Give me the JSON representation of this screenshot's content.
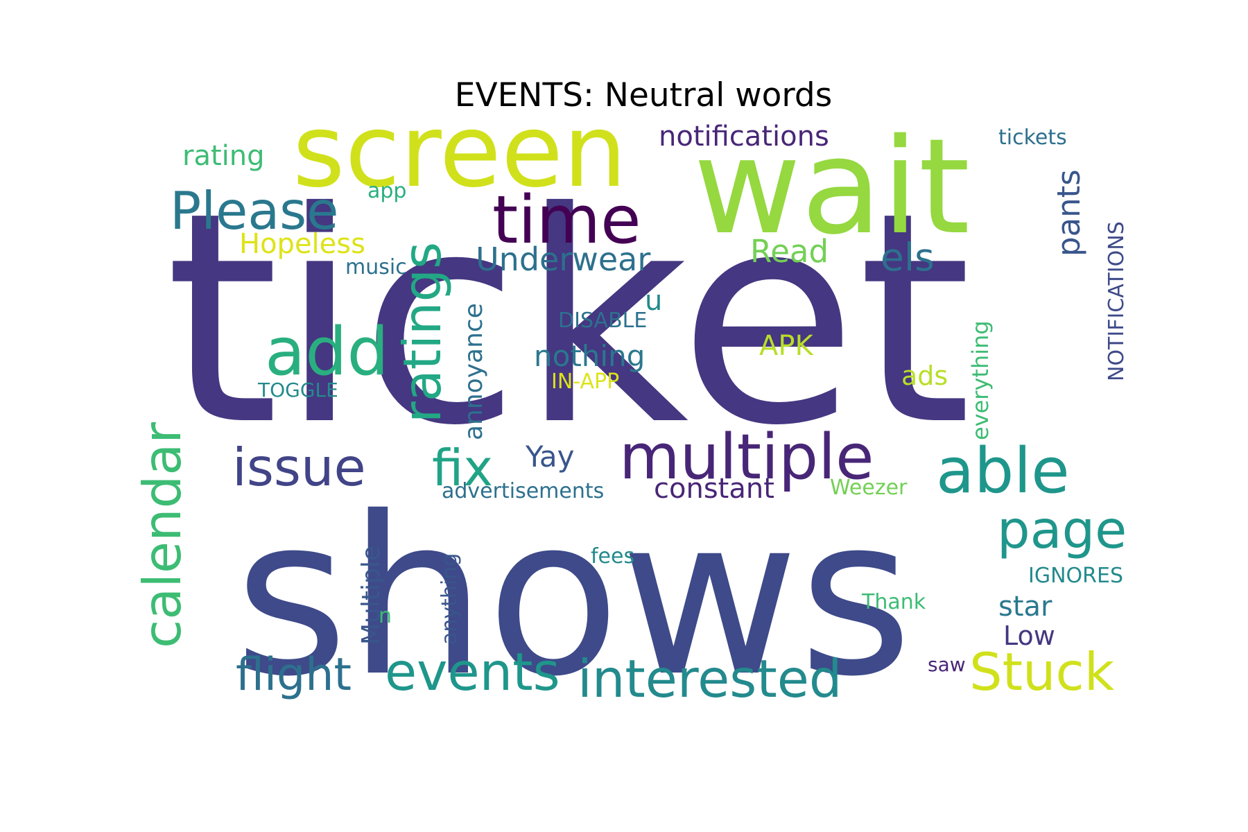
{
  "title": "EVENTS: Neutral words",
  "words": [
    {
      "text": "ticket",
      "color": "#453781"
    },
    {
      "text": "shows",
      "color": "#3e4a89"
    },
    {
      "text": "wait",
      "color": "#95d840"
    },
    {
      "text": "screen",
      "color": "#d0e11c"
    },
    {
      "text": "time",
      "color": "#440154"
    },
    {
      "text": "Please",
      "color": "#2a788e"
    },
    {
      "text": "add",
      "color": "#29af7f"
    },
    {
      "text": "ratings",
      "color": "#22a884"
    },
    {
      "text": "multiple",
      "color": "#482677"
    },
    {
      "text": "able",
      "color": "#1f968b"
    },
    {
      "text": "page",
      "color": "#1f968b"
    },
    {
      "text": "calendar",
      "color": "#3dbc74"
    },
    {
      "text": "issue",
      "color": "#414487"
    },
    {
      "text": "fix",
      "color": "#20a386"
    },
    {
      "text": "flight",
      "color": "#2d708e"
    },
    {
      "text": "events",
      "color": "#1f968b"
    },
    {
      "text": "interested",
      "color": "#238a8d"
    },
    {
      "text": "Stuck",
      "color": "#d0e11c"
    },
    {
      "text": "notifications",
      "color": "#482677"
    },
    {
      "text": "rating",
      "color": "#3dbc74"
    },
    {
      "text": "Hopeless",
      "color": "#dde318"
    },
    {
      "text": "app",
      "color": "#29af7f"
    },
    {
      "text": "music",
      "color": "#2d708e"
    },
    {
      "text": "Underwear",
      "color": "#2d708e"
    },
    {
      "text": "Read",
      "color": "#73d055"
    },
    {
      "text": "els",
      "color": "#2d708e"
    },
    {
      "text": "pants",
      "color": "#39568c"
    },
    {
      "text": "tickets",
      "color": "#2d708e"
    },
    {
      "text": "NOTIFICATIONS",
      "color": "#3e4a89"
    },
    {
      "text": "u",
      "color": "#238a8d"
    },
    {
      "text": "DISABLE",
      "color": "#2d708e"
    },
    {
      "text": "annoyance",
      "color": "#2d708e"
    },
    {
      "text": "nothing",
      "color": "#2a788e"
    },
    {
      "text": "APK",
      "color": "#b8de29"
    },
    {
      "text": "ads",
      "color": "#b8de29"
    },
    {
      "text": "everything",
      "color": "#3dbc74"
    },
    {
      "text": "TOGGLE",
      "color": "#238a8d"
    },
    {
      "text": "IN-APP",
      "color": "#dde318"
    },
    {
      "text": "Yay",
      "color": "#39568c"
    },
    {
      "text": "constant",
      "color": "#482677"
    },
    {
      "text": "advertisements",
      "color": "#2d708e"
    },
    {
      "text": "Weezer",
      "color": "#73d055"
    },
    {
      "text": "Multiple",
      "color": "#39568c"
    },
    {
      "text": "anything",
      "color": "#39568c"
    },
    {
      "text": "n",
      "color": "#3dbc74"
    },
    {
      "text": "fees",
      "color": "#238a8d"
    },
    {
      "text": "IGNORES",
      "color": "#238a8d"
    },
    {
      "text": "Thank",
      "color": "#3dbc74"
    },
    {
      "text": "star",
      "color": "#2a788e"
    },
    {
      "text": "Low",
      "color": "#453781"
    },
    {
      "text": "saw",
      "color": "#482677"
    }
  ]
}
